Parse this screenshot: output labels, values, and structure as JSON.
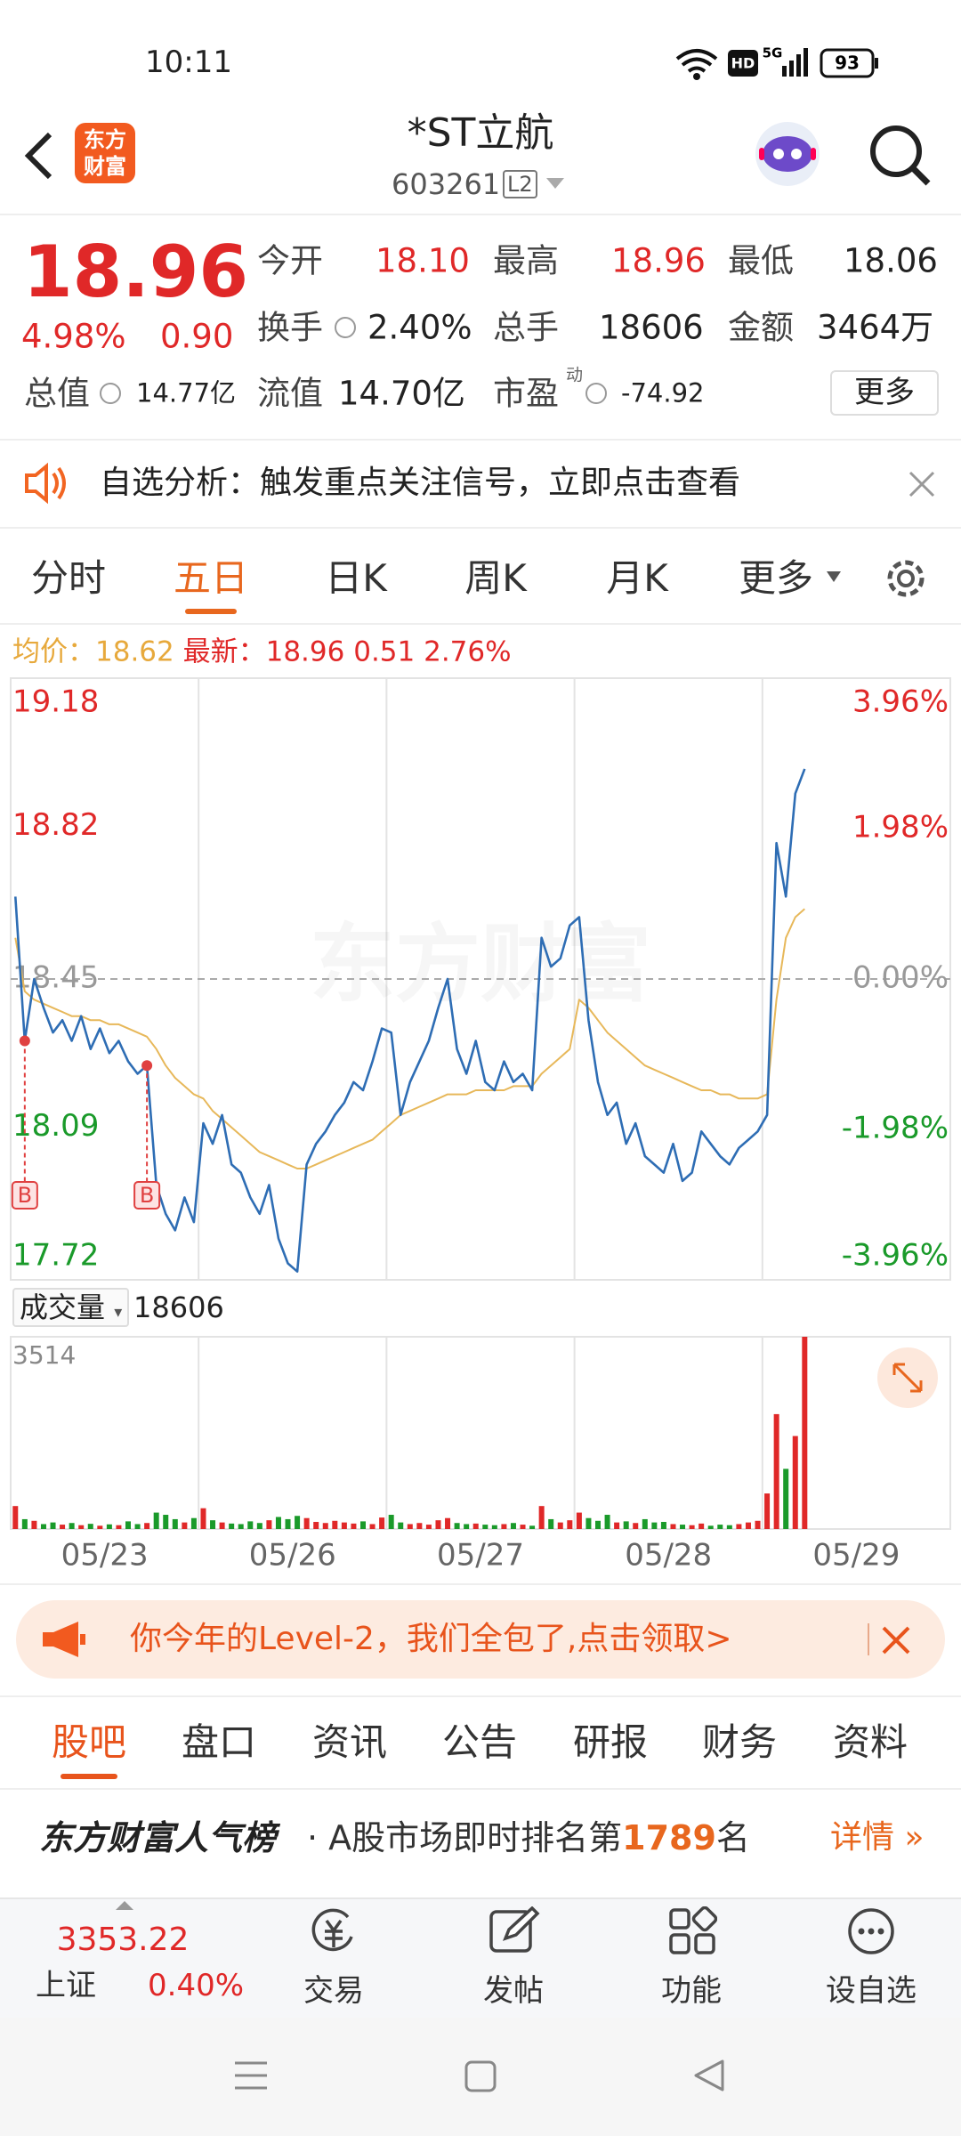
{
  "status_bar": {
    "time": "10:11",
    "hd": "HD",
    "network": "5G",
    "battery": "93"
  },
  "header": {
    "logo": [
      "东方",
      "财富"
    ],
    "title": "*ST立航",
    "code": "603261",
    "level": "L2"
  },
  "quote": {
    "price": "18.96",
    "change_pct": "4.98%",
    "change": "0.90",
    "row1": [
      {
        "label": "今开",
        "value": "18.10"
      },
      {
        "label": "最高",
        "value": "18.96"
      },
      {
        "label": "最低",
        "value": "18.06"
      }
    ],
    "row2": [
      {
        "label": "换手",
        "value": "2.40%"
      },
      {
        "label": "总手",
        "value": "18606"
      },
      {
        "label": "金额",
        "value": "3464万"
      }
    ],
    "row3": [
      {
        "label": "总值",
        "value": "14.77亿"
      },
      {
        "label": "流值",
        "value": "14.70亿"
      },
      {
        "label": "市盈",
        "sup": "动",
        "value": "-74.92"
      }
    ],
    "more": "更多"
  },
  "notice": "自选分析：触发重点关注信号，立即点击查看",
  "period_tabs": [
    "分时",
    "五日",
    "日K",
    "周K",
    "月K",
    "更多"
  ],
  "chart": {
    "type": "line",
    "avg_label": "均价：",
    "avg": "18.62",
    "latest_label": "最新：",
    "latest": "18.96",
    "latest_change": "0.51",
    "latest_pct": "2.76%",
    "watermark": "东方财富",
    "ylim": [
      17.72,
      19.18
    ],
    "yticks": [
      19.18,
      18.82,
      18.45,
      18.09,
      17.72
    ],
    "y2lim": [
      -3.96,
      3.96
    ],
    "y2ticks": [
      {
        "value": 3.96,
        "label": "3.96%"
      },
      {
        "value": 1.98,
        "label": "1.98%"
      },
      {
        "value": 0,
        "label": "0.00%"
      },
      {
        "value": -1.98,
        "label": "-1.98%"
      },
      {
        "value": -3.96,
        "label": "-3.96%"
      }
    ],
    "categories": [
      "05/23",
      "05/26",
      "05/27",
      "05/28",
      "05/29"
    ],
    "series": [
      {
        "color": "#2e6db4",
        "values": [
          18.65,
          18.3,
          18.45,
          18.38,
          18.32,
          18.35,
          18.3,
          18.36,
          18.28,
          18.33,
          18.27,
          18.3,
          18.25,
          18.22,
          18.24,
          17.95,
          17.88,
          17.84,
          17.92,
          17.86,
          18.1,
          18.05,
          18.12,
          18.0,
          17.98,
          17.92,
          17.88,
          17.95,
          17.82,
          17.76,
          17.74,
          18.0,
          18.05,
          18.08,
          18.12,
          18.15,
          18.2,
          18.18,
          18.25,
          18.33,
          18.32,
          18.12,
          18.2,
          18.25,
          18.3,
          18.38,
          18.45,
          18.28,
          18.22,
          18.3,
          18.2,
          18.18,
          18.25,
          18.2,
          18.22,
          18.18,
          18.55,
          18.48,
          18.5,
          18.58,
          18.6,
          18.35,
          18.2,
          18.12,
          18.15,
          18.05,
          18.1,
          18.02,
          18.0,
          17.98,
          18.05,
          17.96,
          17.98,
          18.08,
          18.05,
          18.02,
          18.0,
          18.04,
          18.06,
          18.08,
          18.12,
          18.78,
          18.65,
          18.9,
          18.96
        ]
      },
      {
        "color": "#e7b85a",
        "values": [
          18.55,
          18.42,
          18.4,
          18.39,
          18.38,
          18.37,
          18.36,
          18.36,
          18.35,
          18.35,
          18.34,
          18.34,
          18.33,
          18.32,
          18.31,
          18.28,
          18.24,
          18.21,
          18.19,
          18.17,
          18.16,
          18.13,
          18.11,
          18.09,
          18.07,
          18.05,
          18.03,
          18.02,
          18.01,
          18.0,
          17.99,
          17.99,
          18.0,
          18.01,
          18.02,
          18.03,
          18.04,
          18.05,
          18.06,
          18.08,
          18.1,
          18.12,
          18.13,
          18.14,
          18.15,
          18.16,
          18.17,
          18.17,
          18.17,
          18.18,
          18.18,
          18.18,
          18.18,
          18.19,
          18.19,
          18.19,
          18.22,
          18.24,
          18.26,
          18.28,
          18.4,
          18.38,
          18.35,
          18.32,
          18.3,
          18.28,
          18.26,
          18.24,
          18.23,
          18.22,
          18.21,
          18.2,
          18.19,
          18.18,
          18.18,
          18.17,
          18.17,
          18.16,
          18.16,
          18.16,
          18.17,
          18.4,
          18.55,
          18.6,
          18.62
        ]
      }
    ],
    "markers": [
      {
        "index": 1,
        "label": "B"
      },
      {
        "index": 14,
        "label": "B"
      }
    ],
    "volume": {
      "label": "成交量",
      "total": "18606",
      "ylim": [
        0,
        3514
      ],
      "yticks": [
        3514
      ],
      "values": [
        420,
        180,
        150,
        90,
        120,
        80,
        110,
        70,
        95,
        60,
        85,
        70,
        140,
        90,
        110,
        300,
        260,
        180,
        120,
        200,
        380,
        160,
        120,
        100,
        90,
        140,
        110,
        160,
        220,
        180,
        240,
        200,
        130,
        110,
        150,
        120,
        100,
        140,
        90,
        210,
        260,
        120,
        90,
        110,
        80,
        160,
        200,
        110,
        90,
        100,
        80,
        70,
        90,
        110,
        80,
        60,
        420,
        180,
        120,
        160,
        300,
        200,
        150,
        260,
        120,
        140,
        110,
        180,
        120,
        130,
        90,
        80,
        70,
        100,
        60,
        80,
        70,
        90,
        120,
        150,
        650,
        2100,
        1100,
        1700,
        3514
      ]
    }
  },
  "promo": "你今年的Level-2，我们全包了,点击领取>",
  "info_tabs": [
    "股吧",
    "盘口",
    "资讯",
    "公告",
    "研报",
    "财务",
    "资料"
  ],
  "rank": {
    "brand": "东方财富人气榜",
    "text": "· A股市场即时排名第",
    "rank": "1789",
    "suffix": "名",
    "link": "详情"
  },
  "bottom_bar": {
    "index_value": "3353.22",
    "index_name": "上证",
    "index_pct": "0.40%",
    "items": [
      "交易",
      "发帖",
      "功能",
      "设自选"
    ]
  }
}
